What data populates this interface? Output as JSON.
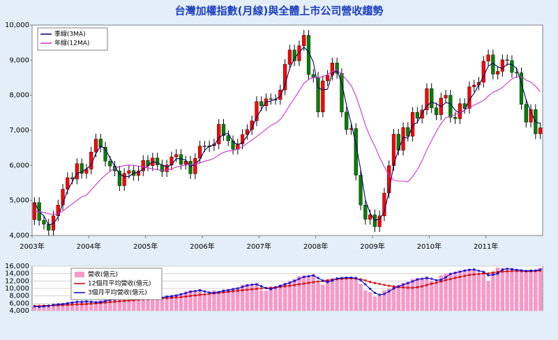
{
  "chart_data": [
    {
      "type": "candlestick",
      "title": "台灣加權指數(月線)與全體上市公司營收趨勢",
      "categories": [
        "2003年",
        null,
        null,
        null,
        null,
        null,
        null,
        null,
        null,
        null,
        null,
        null,
        "2004年",
        null,
        null,
        null,
        null,
        null,
        null,
        null,
        null,
        null,
        null,
        null,
        "2005年",
        null,
        null,
        null,
        null,
        null,
        null,
        null,
        null,
        null,
        null,
        null,
        "2006年",
        null,
        null,
        null,
        null,
        null,
        null,
        null,
        null,
        null,
        null,
        null,
        "2007年",
        null,
        null,
        null,
        null,
        null,
        null,
        null,
        null,
        null,
        null,
        null,
        "2008年",
        null,
        null,
        null,
        null,
        null,
        null,
        null,
        null,
        null,
        null,
        null,
        "2009年",
        null,
        null,
        null,
        null,
        null,
        null,
        null,
        null,
        null,
        null,
        null,
        "2010年",
        null,
        null,
        null,
        null,
        null,
        null,
        null,
        null,
        null,
        null,
        null,
        "2011年",
        null,
        null,
        null,
        null,
        null,
        null,
        null,
        null,
        null,
        null,
        null
      ],
      "open": [
        4450,
        4940,
        4430,
        4320,
        4150,
        4560,
        4870,
        5320,
        5650,
        5610,
        6050,
        5770,
        5890,
        6380,
        6750,
        6520,
        6120,
        5980,
        5840,
        5420,
        5770,
        5850,
        5710,
        5840,
        6140,
        5990,
        6210,
        6010,
        5820,
        6010,
        6240,
        6310,
        6030,
        6120,
        5760,
        6200,
        6550,
        6530,
        6560,
        6610,
        7170,
        6850,
        6700,
        6460,
        6610,
        6880,
        7020,
        7270,
        7820,
        7700,
        7900,
        7880,
        7880,
        8150,
        8880,
        9290,
        8980,
        9410,
        9710,
        8590,
        8510,
        7520,
        8410,
        8570,
        8920,
        8620,
        7520,
        7020,
        7050,
        5720,
        4870,
        4460,
        4590,
        4250,
        4560,
        5210,
        5990,
        6890,
        6430,
        7080,
        6830,
        7510,
        7340,
        7580,
        8190,
        7640,
        7440,
        7920,
        8000,
        7370,
        7330,
        7760,
        7620,
        8240,
        8290,
        8370,
        8970,
        9150,
        8600,
        8680,
        9010,
        8990,
        8650,
        8640,
        7740,
        7230,
        7590,
        6900
      ],
      "high": [
        5090,
        5090,
        4580,
        4470,
        4710,
        5020,
        5470,
        5800,
        5800,
        6200,
        6200,
        6040,
        6530,
        6900,
        6900,
        6670,
        6270,
        6130,
        5990,
        5920,
        6000,
        6000,
        5990,
        6290,
        6290,
        6360,
        6360,
        6160,
        6160,
        6390,
        6460,
        6460,
        6270,
        6270,
        6350,
        6700,
        6700,
        6710,
        6760,
        7320,
        7320,
        7000,
        6850,
        6760,
        7030,
        7170,
        7420,
        7970,
        7970,
        8050,
        8050,
        8030,
        8300,
        9030,
        9440,
        9440,
        9560,
        9860,
        9860,
        8740,
        8660,
        8560,
        8720,
        9070,
        9070,
        8770,
        7670,
        7200,
        7200,
        5870,
        5020,
        4740,
        4740,
        4710,
        5360,
        6140,
        7040,
        7040,
        7230,
        7230,
        7660,
        7660,
        7730,
        8340,
        8340,
        7790,
        8070,
        8150,
        8150,
        7520,
        7910,
        7910,
        8390,
        8440,
        8520,
        9120,
        9300,
        9300,
        8830,
        9160,
        9160,
        9140,
        8800,
        8790,
        7890,
        7740,
        7740,
        7220
      ],
      "low": [
        4300,
        4280,
        4170,
        4000,
        4000,
        4410,
        4720,
        5170,
        5460,
        5460,
        5620,
        5620,
        5740,
        6230,
        6370,
        5970,
        5830,
        5690,
        5270,
        5270,
        5620,
        5560,
        5560,
        5690,
        5840,
        5840,
        5860,
        5670,
        5670,
        5860,
        6090,
        5880,
        5880,
        5610,
        5610,
        6050,
        6380,
        6380,
        6410,
        6460,
        6700,
        6550,
        6310,
        6310,
        6460,
        6730,
        6870,
        7120,
        7550,
        7550,
        7730,
        7730,
        7730,
        8000,
        8730,
        8830,
        8830,
        9260,
        8440,
        8360,
        7370,
        7370,
        8260,
        8420,
        8470,
        7370,
        6870,
        6870,
        5570,
        4720,
        4310,
        4310,
        4100,
        4100,
        4410,
        5060,
        5840,
        6280,
        6280,
        6680,
        6680,
        7190,
        7190,
        7430,
        7490,
        7290,
        7290,
        7770,
        7220,
        7180,
        7180,
        7470,
        7470,
        8090,
        8140,
        8220,
        8820,
        8450,
        8450,
        8530,
        8840,
        8500,
        8490,
        7590,
        7080,
        7080,
        6750,
        6750
      ],
      "close": [
        4940,
        4430,
        4320,
        4150,
        4560,
        4870,
        5320,
        5650,
        5610,
        6050,
        5770,
        5890,
        6380,
        6750,
        6520,
        6120,
        5980,
        5840,
        5420,
        5770,
        5850,
        5710,
        5840,
        6140,
        5990,
        6210,
        6010,
        5820,
        6010,
        6240,
        6310,
        6030,
        6120,
        5760,
        6200,
        6550,
        6530,
        6560,
        6610,
        7170,
        6850,
        6700,
        6460,
        6610,
        6880,
        7020,
        7270,
        7820,
        7700,
        7900,
        7880,
        7880,
        8150,
        8880,
        9290,
        8980,
        9410,
        9710,
        8590,
        8510,
        7520,
        8410,
        8570,
        8920,
        8620,
        7520,
        7020,
        7050,
        5720,
        4870,
        4460,
        4590,
        4250,
        4560,
        5210,
        5990,
        6890,
        6430,
        7080,
        6830,
        7510,
        7340,
        7580,
        8190,
        7640,
        7440,
        7920,
        8000,
        7370,
        7330,
        7760,
        7620,
        8240,
        8290,
        8370,
        8970,
        9150,
        8600,
        8680,
        9010,
        8990,
        8650,
        8640,
        7740,
        7230,
        7590,
        6900,
        7070
      ],
      "up_color": "#ff0000",
      "down_color": "#008000",
      "series": [
        {
          "name": "季線(3MA)",
          "color": "#000066",
          "values": [
            4940,
            4690,
            4560,
            4300,
            4340,
            4530,
            4920,
            5280,
            5530,
            5770,
            5810,
            5900,
            6010,
            6340,
            6550,
            6460,
            6210,
            5980,
            5750,
            5680,
            5680,
            5780,
            5800,
            5900,
            5990,
            6110,
            6070,
            6010,
            5950,
            6020,
            6190,
            6190,
            6150,
            5970,
            6030,
            6170,
            6430,
            6550,
            6570,
            6780,
            6880,
            6910,
            6670,
            6590,
            6650,
            6840,
            7060,
            7370,
            7600,
            7810,
            7830,
            7890,
            7970,
            8300,
            8770,
            9050,
            9230,
            9370,
            9240,
            8940,
            8210,
            8150,
            8170,
            8630,
            8700,
            8350,
            7720,
            7200,
            6600,
            5880,
            5020,
            4640,
            4430,
            4470,
            4670,
            5250,
            6030,
            6440,
            6800,
            6780,
            7140,
            7230,
            7480,
            7700,
            7800,
            7760,
            7670,
            7790,
            7760,
            7570,
            7490,
            7570,
            7870,
            8050,
            8300,
            8540,
            8830,
            8910,
            8810,
            8760,
            8890,
            8880,
            8760,
            8340,
            7870,
            7520,
            7240,
            7190
          ]
        },
        {
          "name": "年線(12MA)",
          "color": "#cc33cc",
          "values": [
            4700,
            4680,
            4660,
            4620,
            4600,
            4620,
            4700,
            4800,
            4900,
            5000,
            5100,
            5150,
            5300,
            5450,
            5600,
            5720,
            5830,
            5920,
            5960,
            5990,
            6010,
            6000,
            5980,
            5960,
            5930,
            5900,
            5880,
            5860,
            5860,
            5900,
            5950,
            5980,
            6010,
            6010,
            6040,
            6070,
            6120,
            6150,
            6200,
            6300,
            6370,
            6410,
            6420,
            6470,
            6530,
            6630,
            6720,
            6820,
            6920,
            7030,
            7140,
            7200,
            7310,
            7490,
            7720,
            7910,
            8120,
            8340,
            8450,
            8510,
            8490,
            8530,
            8590,
            8680,
            8720,
            8600,
            8440,
            8280,
            7980,
            7580,
            7150,
            6820,
            6550,
            6230,
            5960,
            5720,
            5580,
            5550,
            5550,
            5530,
            5680,
            5880,
            6140,
            6440,
            6710,
            6960,
            7190,
            7360,
            7400,
            7450,
            7500,
            7580,
            7640,
            7720,
            7780,
            7850,
            7980,
            8080,
            8140,
            8220,
            8350,
            8460,
            8530,
            8530,
            8430,
            8370,
            8260,
            8100
          ]
        }
      ],
      "ylim": [
        4000,
        10000
      ],
      "yticks": [
        {
          "value": 4000,
          "label": "4,000"
        },
        {
          "value": 5000,
          "label": "5,000"
        },
        {
          "value": 6000,
          "label": "6,000"
        },
        {
          "value": 7000,
          "label": "7,000"
        },
        {
          "value": 8000,
          "label": "8,000"
        },
        {
          "value": 9000,
          "label": "9,000"
        },
        {
          "value": 10000,
          "label": "10,000"
        }
      ],
      "grid": false
    },
    {
      "type": "bar_line",
      "series": [
        {
          "name": "營收(億元)",
          "kind": "bar",
          "color": "#f799c8",
          "values": [
            5200,
            4800,
            5600,
            5500,
            5700,
            5800,
            6000,
            6200,
            6400,
            6500,
            6300,
            6600,
            6200,
            6000,
            6800,
            6900,
            7000,
            7200,
            7300,
            7400,
            7500,
            7600,
            7300,
            7900,
            7000,
            6900,
            7800,
            7700,
            7900,
            8100,
            8300,
            8700,
            9200,
            9500,
            9300,
            9800,
            8500,
            8300,
            9500,
            9300,
            9500,
            9800,
            10000,
            10300,
            11000,
            11200,
            10800,
            11400,
            9500,
            9400,
            10500,
            10600,
            11000,
            11600,
            12000,
            12500,
            13300,
            13500,
            13200,
            13800,
            11500,
            11000,
            12500,
            12800,
            12700,
            12900,
            13000,
            12800,
            12500,
            11200,
            9500,
            9000,
            7800,
            8200,
            9500,
            10000,
            10500,
            11000,
            11500,
            11800,
            12500,
            12800,
            12500,
            13200,
            12000,
            11500,
            13500,
            14000,
            14200,
            14500,
            14800,
            15000,
            15200,
            15000,
            14000,
            14500,
            12000,
            14500,
            15600,
            15200,
            15000,
            15300,
            14800,
            14700,
            14700,
            15000,
            14800,
            15500
          ]
        },
        {
          "name": "12個月平均營收(億元)",
          "kind": "line",
          "color": "#cc0000",
          "values": [
            5300,
            5320,
            5350,
            5380,
            5420,
            5470,
            5520,
            5580,
            5640,
            5700,
            5750,
            5800,
            5900,
            5990,
            6090,
            6210,
            6320,
            6440,
            6550,
            6650,
            6750,
            6840,
            6920,
            7030,
            7100,
            7180,
            7260,
            7330,
            7410,
            7480,
            7570,
            7680,
            7820,
            7980,
            8140,
            8300,
            8430,
            8550,
            8690,
            8820,
            8950,
            9090,
            9230,
            9360,
            9510,
            9650,
            9780,
            9910,
            10000,
            10090,
            10170,
            10280,
            10410,
            10560,
            10730,
            10910,
            11100,
            11290,
            11490,
            11690,
            11860,
            12000,
            12170,
            12350,
            12490,
            12600,
            12690,
            12720,
            12650,
            12460,
            12150,
            11750,
            11440,
            11210,
            10960,
            10730,
            10550,
            10390,
            10270,
            10190,
            10190,
            10320,
            10570,
            10920,
            11270,
            11550,
            11880,
            12220,
            12530,
            12830,
            13100,
            13370,
            13600,
            13780,
            13910,
            14020,
            14020,
            14270,
            14450,
            14550,
            14610,
            14680,
            14680,
            14650,
            14610,
            14610,
            14680,
            14760
          ]
        },
        {
          "name": "3個月平均營收(億元)",
          "kind": "line",
          "color": "#0000cc",
          "values": [
            5200,
            5000,
            5200,
            5300,
            5600,
            5700,
            5800,
            6000,
            6200,
            6400,
            6400,
            6500,
            6400,
            6300,
            6300,
            6600,
            6900,
            7000,
            7200,
            7300,
            7400,
            7500,
            7500,
            7600,
            7400,
            7300,
            7200,
            7500,
            7800,
            7900,
            8100,
            8400,
            8700,
            9100,
            9300,
            9500,
            9200,
            8900,
            8800,
            9000,
            9400,
            9500,
            9800,
            10000,
            10400,
            10800,
            11000,
            11100,
            10600,
            10100,
            9800,
            10200,
            10700,
            11100,
            11500,
            12000,
            12600,
            13100,
            13300,
            13500,
            12800,
            12100,
            11700,
            12100,
            12700,
            12800,
            12900,
            12900,
            12800,
            12200,
            11100,
            9900,
            8800,
            8300,
            8500,
            9200,
            10000,
            10500,
            11000,
            11400,
            11900,
            12400,
            12600,
            12800,
            12600,
            12200,
            12300,
            13000,
            13900,
            14200,
            14500,
            14800,
            15000,
            15100,
            14700,
            14500,
            13500,
            13700,
            14000,
            15100,
            15300,
            15200,
            15000,
            14900,
            14700,
            14800,
            14800,
            15100
          ]
        }
      ],
      "ylim": [
        4000,
        16000
      ],
      "yticks": [
        {
          "value": 4000,
          "label": "4,000"
        },
        {
          "value": 6000,
          "label": "6,000"
        },
        {
          "value": 8000,
          "label": "8,000"
        },
        {
          "value": 10000,
          "label": "10,000"
        },
        {
          "value": 12000,
          "label": "12,000"
        },
        {
          "value": 14000,
          "label": "14,000"
        },
        {
          "value": 16000,
          "label": "16,000"
        }
      ],
      "grid": true
    }
  ]
}
